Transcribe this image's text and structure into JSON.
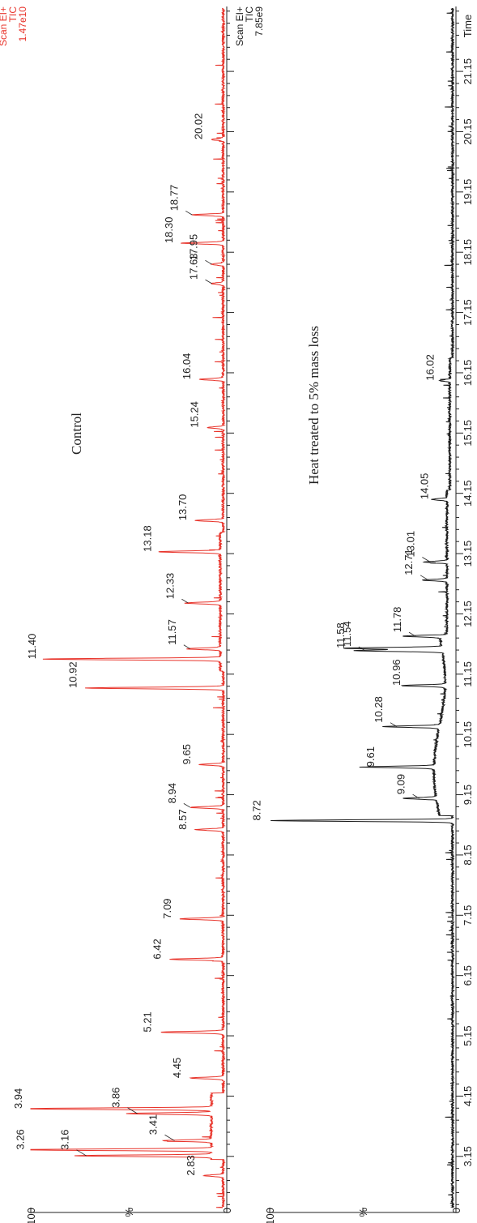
{
  "chart_data": [
    {
      "type": "line",
      "title": "Control",
      "header_lines": [
        "Scan EI+",
        "TIC",
        "1.47e10"
      ],
      "color": "#e8332a",
      "ylabel": "%",
      "yticks": [
        "100",
        "0"
      ],
      "ylim": [
        0,
        100
      ],
      "xlim": [
        2.3,
        22.2
      ],
      "peaks": [
        {
          "x": 2.83,
          "y": 10,
          "label": "2.83"
        },
        {
          "x": 3.16,
          "y": 70,
          "label": "3.16"
        },
        {
          "x": 3.26,
          "y": 97,
          "label": "3.26"
        },
        {
          "x": 3.41,
          "y": 25,
          "label": "3.41"
        },
        {
          "x": 3.86,
          "y": 44,
          "label": "3.86"
        },
        {
          "x": 3.94,
          "y": 98,
          "label": "3.94"
        },
        {
          "x": 4.45,
          "y": 17,
          "label": "4.45"
        },
        {
          "x": 5.21,
          "y": 32,
          "label": "5.21"
        },
        {
          "x": 6.42,
          "y": 27,
          "label": "6.42"
        },
        {
          "x": 7.09,
          "y": 22,
          "label": "7.09"
        },
        {
          "x": 8.57,
          "y": 14,
          "label": "8.57"
        },
        {
          "x": 8.94,
          "y": 17,
          "label": "8.94"
        },
        {
          "x": 9.65,
          "y": 12,
          "label": "9.65"
        },
        {
          "x": 10.92,
          "y": 70,
          "label": "10.92"
        },
        {
          "x": 11.4,
          "y": 91,
          "label": "11.40"
        },
        {
          "x": 11.57,
          "y": 17,
          "label": "11.57"
        },
        {
          "x": 12.33,
          "y": 18,
          "label": "12.33"
        },
        {
          "x": 13.18,
          "y": 32,
          "label": "13.18"
        },
        {
          "x": 13.7,
          "y": 14,
          "label": "13.70"
        },
        {
          "x": 15.24,
          "y": 8,
          "label": "15.24"
        },
        {
          "x": 16.04,
          "y": 12,
          "label": "16.04"
        },
        {
          "x": 17.63,
          "y": 6,
          "label": "17.63"
        },
        {
          "x": 17.95,
          "y": 6,
          "label": "17.95"
        },
        {
          "x": 18.3,
          "y": 21,
          "label": "18.30"
        },
        {
          "x": 18.77,
          "y": 16,
          "label": "18.77"
        },
        {
          "x": 20.02,
          "y": 6,
          "label": "20.02"
        }
      ]
    },
    {
      "type": "line",
      "title": "Heat treated to 5% mass loss",
      "header_lines": [
        "Scan EI+",
        "TIC",
        "7.85e9"
      ],
      "color": "#1a1a1a",
      "ylabel": "%",
      "yticks": [
        "100",
        "0"
      ],
      "ylim": [
        0,
        100
      ],
      "xlim": [
        2.3,
        22.2
      ],
      "xlabel": "Time",
      "xticks": [
        3.15,
        4.15,
        5.15,
        6.15,
        7.15,
        8.15,
        9.15,
        10.15,
        11.15,
        12.15,
        13.15,
        14.15,
        15.15,
        16.15,
        17.15,
        18.15,
        19.15,
        20.15,
        21.15
      ],
      "xtick_labels": [
        "3.15",
        "4.15",
        "5.15",
        "6.15",
        "7.15",
        "8.15",
        "9.15",
        "10.15",
        "11.15",
        "12.15",
        "13.15",
        "14.15",
        "15.15",
        "16.15",
        "17.15",
        "18.15",
        "19.15",
        "20.15",
        "21.15"
      ],
      "peaks": [
        {
          "x": 8.72,
          "y": 98,
          "label": "8.72"
        },
        {
          "x": 9.09,
          "y": 18,
          "label": "9.09"
        },
        {
          "x": 9.61,
          "y": 37,
          "label": "9.61"
        },
        {
          "x": 10.28,
          "y": 30,
          "label": "10.28"
        },
        {
          "x": 10.96,
          "y": 23,
          "label": "10.96"
        },
        {
          "x": 11.54,
          "y": 47,
          "label": "11.54"
        },
        {
          "x": 11.58,
          "y": 53,
          "label": "11.58"
        },
        {
          "x": 11.78,
          "y": 20,
          "label": "11.78"
        },
        {
          "x": 12.71,
          "y": 13,
          "label": "12.71"
        },
        {
          "x": 13.01,
          "y": 12,
          "label": "13.01"
        },
        {
          "x": 14.05,
          "y": 8,
          "label": "14.05"
        },
        {
          "x": 16.02,
          "y": 5,
          "label": "16.02"
        }
      ]
    }
  ]
}
